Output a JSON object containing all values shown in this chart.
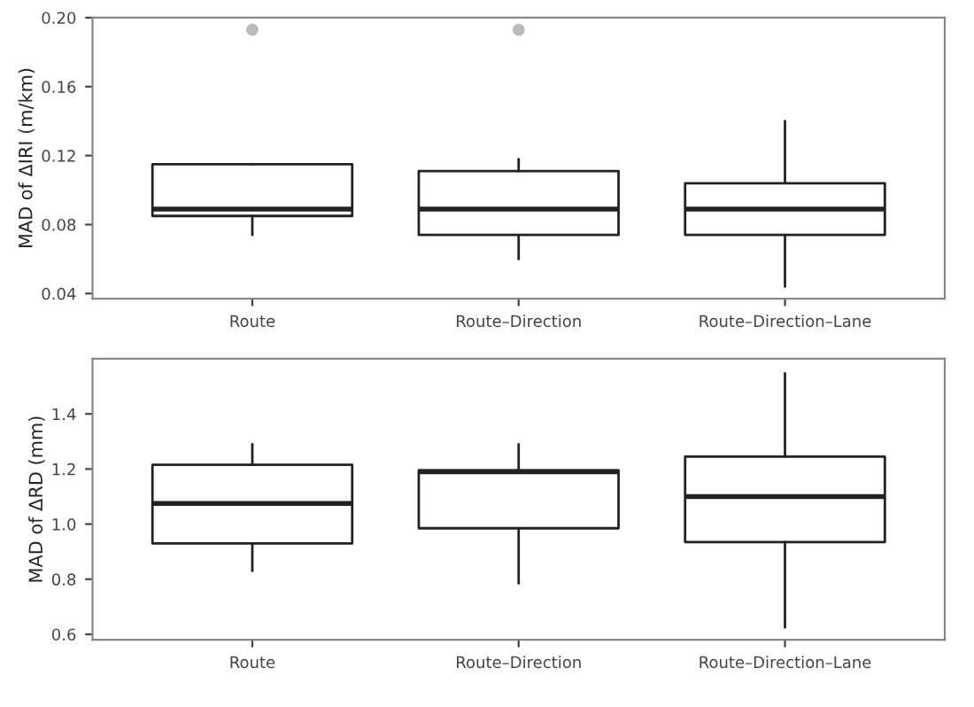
{
  "chart_data": [
    {
      "type": "box",
      "ylabel": "MAD of ΔIRI (m/km)",
      "categories": [
        "Route",
        "Route–Direction",
        "Route–Direction–Lane"
      ],
      "ylim": [
        0.037,
        0.2
      ],
      "yticks": [
        {
          "value": 0.04,
          "label": "0.04"
        },
        {
          "value": 0.08,
          "label": "0.08"
        },
        {
          "value": 0.12,
          "label": "0.12"
        },
        {
          "value": 0.16,
          "label": "0.16"
        },
        {
          "value": 0.2,
          "label": "0.20"
        }
      ],
      "grid": false,
      "boxes": [
        {
          "low": 0.074,
          "q1": 0.085,
          "median": 0.089,
          "q3": 0.115,
          "high": 0.115,
          "outliers": [
            0.193
          ]
        },
        {
          "low": 0.06,
          "q1": 0.074,
          "median": 0.089,
          "q3": 0.111,
          "high": 0.118,
          "outliers": [
            0.193
          ]
        },
        {
          "low": 0.044,
          "q1": 0.074,
          "median": 0.089,
          "q3": 0.104,
          "high": 0.14
        }
      ]
    },
    {
      "type": "box",
      "ylabel": "MAD of ΔRD (mm)",
      "categories": [
        "Route",
        "Route–Direction",
        "Route–Direction–Lane"
      ],
      "ylim": [
        0.58,
        1.6
      ],
      "yticks": [
        {
          "value": 0.6,
          "label": "0.6"
        },
        {
          "value": 0.8,
          "label": "0.8"
        },
        {
          "value": 1.0,
          "label": "1.0"
        },
        {
          "value": 1.2,
          "label": "1.2"
        },
        {
          "value": 1.4,
          "label": "1.4"
        }
      ],
      "grid": false,
      "boxes": [
        {
          "low": 0.83,
          "q1": 0.93,
          "median": 1.075,
          "q3": 1.215,
          "high": 1.29
        },
        {
          "low": 0.785,
          "q1": 0.985,
          "median": 1.19,
          "q3": 1.195,
          "high": 1.29
        },
        {
          "low": 0.625,
          "q1": 0.935,
          "median": 1.1,
          "q3": 1.245,
          "high": 1.547
        }
      ]
    }
  ]
}
